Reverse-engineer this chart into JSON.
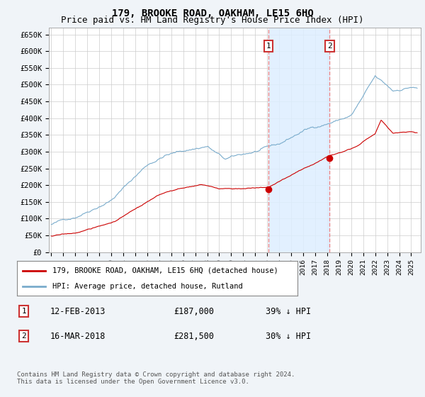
{
  "title": "179, BROOKE ROAD, OAKHAM, LE15 6HQ",
  "subtitle": "Price paid vs. HM Land Registry's House Price Index (HPI)",
  "ylim": [
    0,
    670000
  ],
  "xlim_start": 1994.8,
  "xlim_end": 2025.8,
  "sale1_date": 2013.12,
  "sale1_price": 187000,
  "sale2_date": 2018.21,
  "sale2_price": 281500,
  "sale1_annotation": "12-FEB-2013",
  "sale1_price_str": "£187,000",
  "sale1_hpi_str": "39% ↓ HPI",
  "sale2_annotation": "16-MAR-2018",
  "sale2_price_str": "£281,500",
  "sale2_hpi_str": "30% ↓ HPI",
  "red_line_color": "#cc0000",
  "blue_line_color": "#7aaccc",
  "dashed_line_color": "#ee8888",
  "span_color": "#ddeeff",
  "background_color": "#f0f4f8",
  "plot_bg_color": "#ffffff",
  "legend_label_red": "179, BROOKE ROAD, OAKHAM, LE15 6HQ (detached house)",
  "legend_label_blue": "HPI: Average price, detached house, Rutland",
  "footer": "Contains HM Land Registry data © Crown copyright and database right 2024.\nThis data is licensed under the Open Government Licence v3.0.",
  "title_fontsize": 10,
  "subtitle_fontsize": 9
}
